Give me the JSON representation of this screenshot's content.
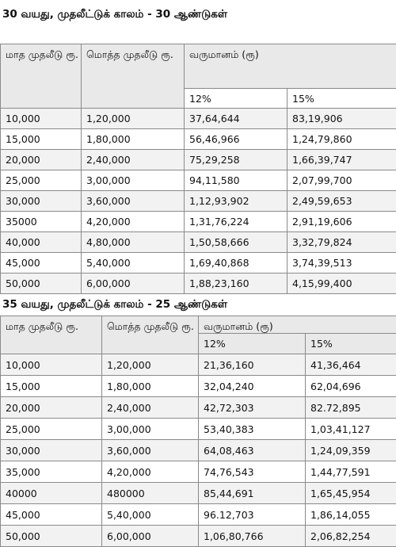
{
  "section1": {
    "title": "30 வயது, முதலீட்டுக் காலம் - 30  ஆண்டுகள்",
    "col_monthly": "மாத முதலீடு ரூ.",
    "col_total": "மொத்த முதலீடு ரூ.",
    "col_returns": "வருமானம் (ரூ)",
    "rate_12": "12%",
    "rate_15": "15%",
    "rows": [
      [
        "10,000",
        "1,20,000",
        "37,64,644",
        "83,19,906"
      ],
      [
        "15,000",
        "1,80,000",
        "56,46,966",
        "1,24,79,860"
      ],
      [
        "20,000",
        "2,40,000",
        "75,29,258",
        "1,66,39,747"
      ],
      [
        "25,000",
        "3,00,000",
        "94,11,580",
        "2,07,99,700"
      ],
      [
        "30,000",
        "3,60,000",
        "1,12,93,902",
        "2,49,59,653"
      ],
      [
        "35000",
        "4,20,000",
        "1,31,76,224",
        "2,91,19,606"
      ],
      [
        "40,000",
        "4,80,000",
        "1,50,58,666",
        "3,32,79,824"
      ],
      [
        "45,000",
        "5,40,000",
        "1,69,40,868",
        "3,74,39,513"
      ],
      [
        "50,000",
        "6,00,000",
        "1,88,23,160",
        "4,15,99,400"
      ]
    ]
  },
  "section2": {
    "title": "35 வயது, முதலீட்டுக் காலம் - 25  ஆண்டுகள்",
    "col_monthly": "மாத முதலீடு ரூ.",
    "col_total": "மொத்த முதலீடு ரூ.",
    "col_returns": "வருமானம் (ரூ)",
    "rate_12": "12%",
    "rate_15": "15%",
    "rows": [
      [
        "10,000",
        "1,20,000",
        "21,36,160",
        "41,36,464"
      ],
      [
        "15,000",
        "1,80,000",
        "32,04,240",
        "62,04,696"
      ],
      [
        "20,000",
        "2,40,000",
        "42,72,303",
        "82.72,895"
      ],
      [
        "25,000",
        "3,00,000",
        "53,40,383",
        "1,03,41,127"
      ],
      [
        "30,000",
        "3,60,000",
        "64,08,463",
        "1,24,09,359"
      ],
      [
        "35,000",
        "4,20,000",
        "74,76,543",
        "1,44,77,591"
      ],
      [
        "40000",
        "480000",
        "85,44,691",
        "1,65,45,954"
      ],
      [
        "45,000",
        "5,40,000",
        "96.12,703",
        "1,86,14,055"
      ],
      [
        "50,000",
        "6,00,000",
        "1,06,80,766",
        "2,06,82,254"
      ]
    ]
  }
}
